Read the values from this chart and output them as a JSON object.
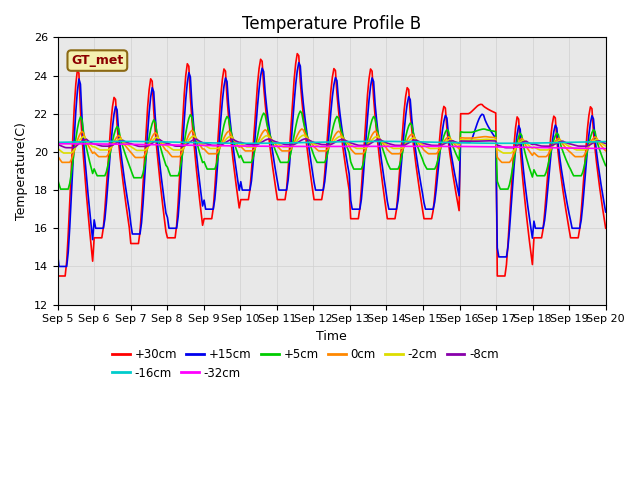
{
  "title": "Temperature Profile B",
  "xlabel": "Time",
  "ylabel": "Temperature(C)",
  "ylim": [
    12,
    26
  ],
  "n_days": 15,
  "xtick_labels": [
    "Sep 5",
    "Sep 6",
    "Sep 7",
    "Sep 8",
    "Sep 9",
    "Sep 10",
    "Sep 11",
    "Sep 12",
    "Sep 13",
    "Sep 14",
    "Sep 15",
    "Sep 16",
    "Sep 17",
    "Sep 18",
    "Sep 19",
    "Sep 20"
  ],
  "annotation_text": "GT_met",
  "annotation_bbox_facecolor": "#f5f0b0",
  "annotation_bbox_edgecolor": "#8B6914",
  "legend_entries": [
    "+30cm",
    "+15cm",
    "+5cm",
    "0cm",
    "-2cm",
    "-8cm",
    "-16cm",
    "-32cm"
  ],
  "line_colors": [
    "#ff0000",
    "#0000ee",
    "#00cc00",
    "#ff8800",
    "#dddd00",
    "#8800aa",
    "#00cccc",
    "#ff00ff"
  ],
  "line_widths": [
    1.2,
    1.2,
    1.2,
    1.2,
    1.2,
    1.2,
    1.2,
    1.2
  ],
  "grid_color": "#d0d0d0",
  "background_color": "#e8e8e8",
  "title_fontsize": 12,
  "axis_label_fontsize": 9,
  "tick_fontsize": 8,
  "legend_ncol_row1": 6,
  "legend_ncol_row2": 2
}
